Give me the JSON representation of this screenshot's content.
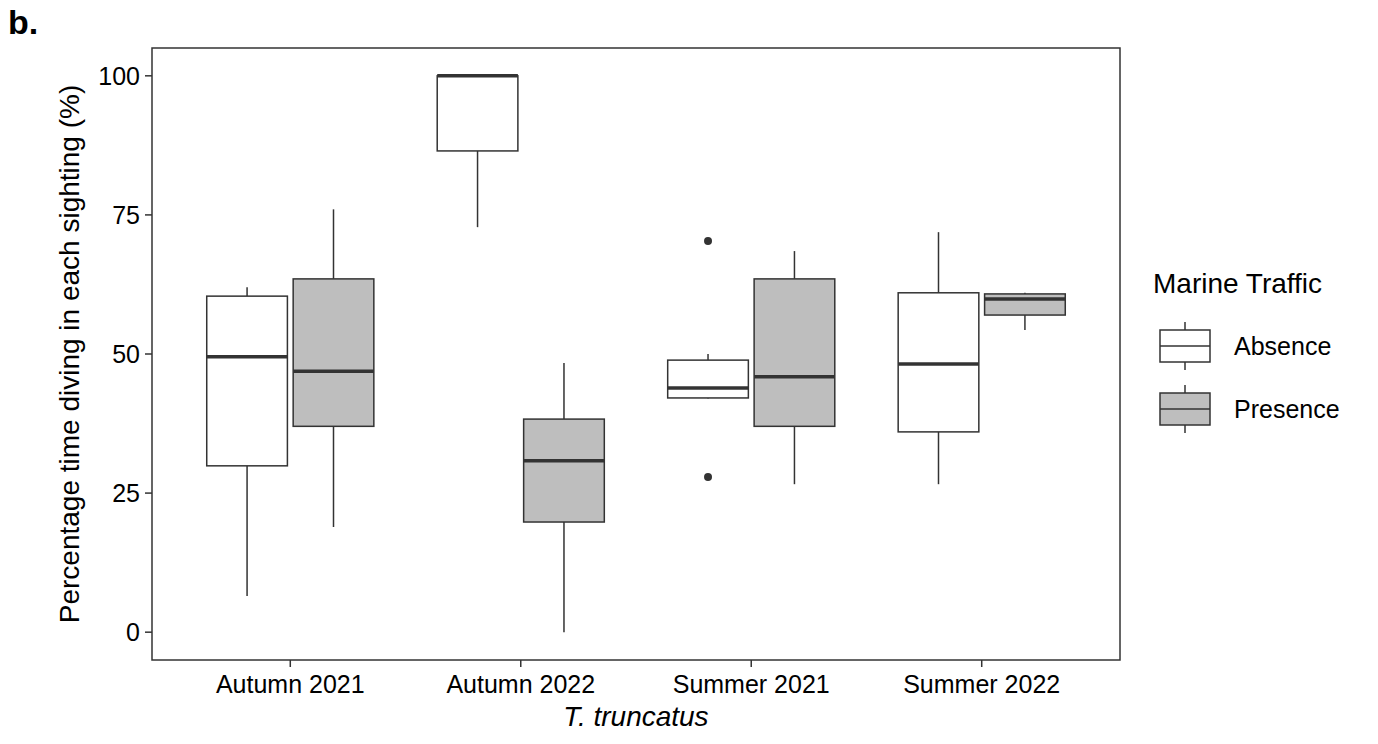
{
  "chart_data": {
    "type": "box",
    "panel_label": "b.",
    "x_label": "T. truncatus",
    "y_label": "Percentage time diving in each sighting (%)",
    "legend_title": "Marine Traffic",
    "legend": "right",
    "grid": false,
    "categories": [
      "Autumn 2021",
      "Autumn 2022",
      "Summer 2021",
      "Summer 2022"
    ],
    "ylim": [
      -5,
      105
    ],
    "yticks": [
      0,
      25,
      50,
      75,
      100
    ],
    "series": [
      {
        "name": "Absence",
        "color": "#ffffff",
        "values": [
          {
            "min": 6.5,
            "q1": 29.9,
            "median": 49.5,
            "q3": 60.4,
            "max": 62,
            "outliers": []
          },
          {
            "min": 72.8,
            "q1": 86.5,
            "median": 100,
            "q3": 100,
            "max": 100,
            "outliers": []
          },
          {
            "min": 42,
            "q1": 42.1,
            "median": 43.9,
            "q3": 48.9,
            "max": 50,
            "outliers": [
              70.3,
              27.9
            ]
          },
          {
            "min": 26.6,
            "q1": 36,
            "median": 48.2,
            "q3": 61,
            "max": 71.9,
            "outliers": []
          }
        ]
      },
      {
        "name": "Presence",
        "color": "#bebebe",
        "values": [
          {
            "min": 18.9,
            "q1": 37,
            "median": 46.9,
            "q3": 63.5,
            "max": 76,
            "outliers": []
          },
          {
            "min": 0,
            "q1": 19.8,
            "median": 30.8,
            "q3": 38.3,
            "max": 48.4,
            "outliers": []
          },
          {
            "min": 26.6,
            "q1": 37,
            "median": 45.9,
            "q3": 63.5,
            "max": 68.5,
            "outliers": []
          },
          {
            "min": 54.3,
            "q1": 57,
            "median": 59.9,
            "q3": 60.8,
            "max": 61,
            "outliers": []
          }
        ]
      }
    ]
  }
}
